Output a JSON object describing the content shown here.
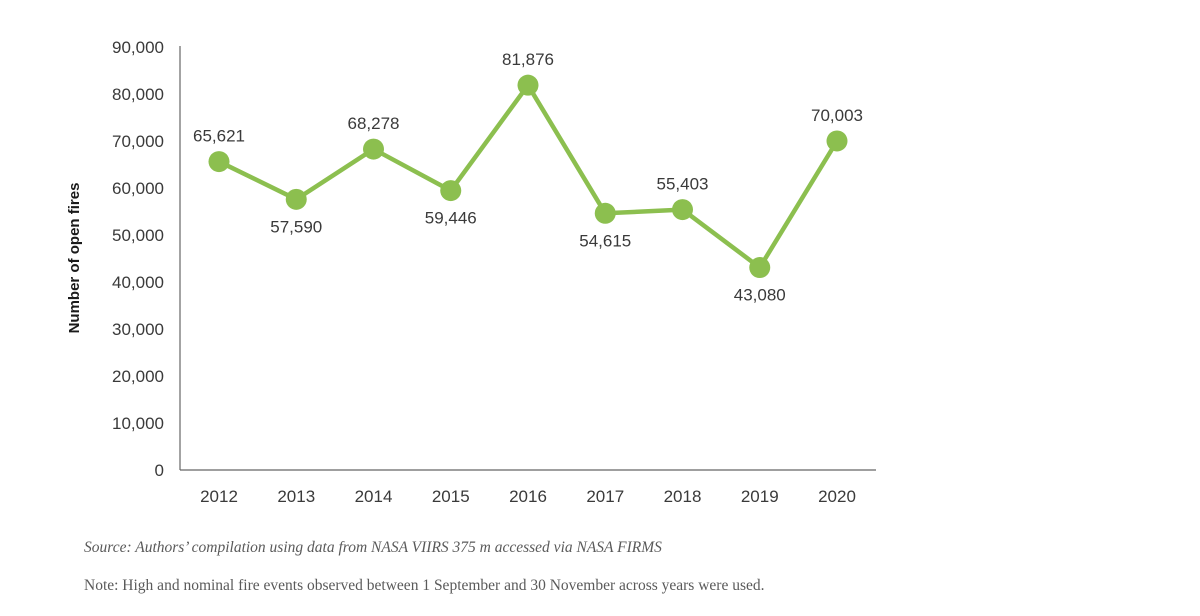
{
  "chart_data": {
    "type": "line",
    "title": "",
    "xlabel": "",
    "ylabel": "Number of open fires",
    "x": [
      "2012",
      "2013",
      "2014",
      "2015",
      "2016",
      "2017",
      "2018",
      "2019",
      "2020"
    ],
    "series": [
      {
        "values": [
          65621,
          57590,
          68278,
          59446,
          81876,
          54615,
          55403,
          43080,
          70003
        ],
        "labels": [
          "65,621",
          "57,590",
          "68,278",
          "59,446",
          "81,876",
          "54,615",
          "55,403",
          "43,080",
          "70,003"
        ],
        "label_positions": [
          "above",
          "below",
          "above",
          "below",
          "above",
          "below",
          "above",
          "below",
          "above"
        ]
      }
    ],
    "ylim": [
      0,
      90000
    ],
    "yticks": [
      0,
      10000,
      20000,
      30000,
      40000,
      50000,
      60000,
      70000,
      80000,
      90000
    ],
    "ytick_labels": [
      "0",
      "10,000",
      "20,000",
      "30,000",
      "40,000",
      "50,000",
      "60,000",
      "70,000",
      "80,000",
      "90,000"
    ],
    "grid": false,
    "line_color": "#8cbf4f",
    "marker_color": "#8cbf4f"
  },
  "source_text": "Source: Authors’ compilation using data from NASA VIIRS 375 m accessed via NASA FIRMS",
  "note_text": "Note: High and nominal fire events observed between 1 September and 30 November across years were used."
}
